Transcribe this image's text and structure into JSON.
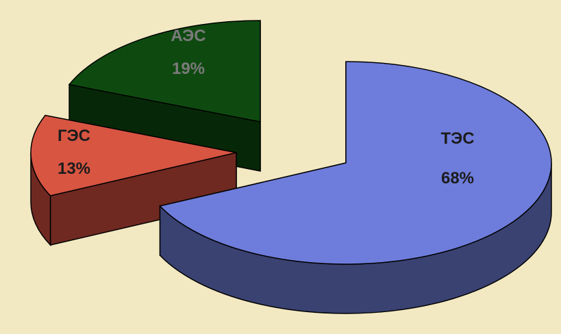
{
  "background_color": "#f2e8c2",
  "chart_data": {
    "type": "pie",
    "style": "3d-exploded",
    "title": "",
    "legend": "none",
    "slices": [
      {
        "name": "ТЭС",
        "value": 68,
        "label": "ТЭС",
        "value_label": "68%",
        "top_color": "#6e7ddb",
        "side_color": "#3a4272",
        "text_color": "#1c1c1c"
      },
      {
        "name": "ГЭС",
        "value": 13,
        "label": "ГЭС",
        "value_label": "13%",
        "top_color": "#d85542",
        "side_color": "#6f2921",
        "text_color": "#1c1c1c"
      },
      {
        "name": "АЭС",
        "value": 19,
        "label": "АЭС",
        "value_label": "19%",
        "top_color": "#0e4a10",
        "side_color": "#062808",
        "text_color": "#7a7a7a"
      }
    ]
  }
}
